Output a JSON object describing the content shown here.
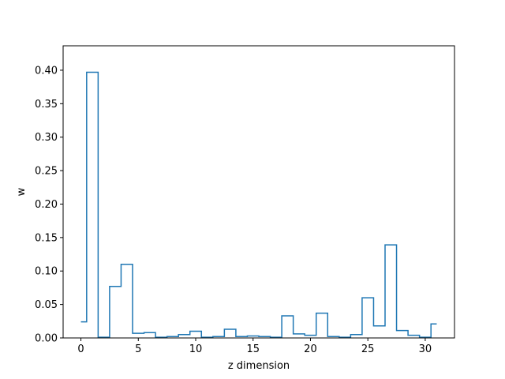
{
  "chart_data": {
    "type": "line",
    "drawstyle": "steps-mid",
    "xlabel": "z dimension",
    "ylabel": "w",
    "xlim": [
      -1.55,
      32.55
    ],
    "ylim": [
      0,
      0.4365
    ],
    "x_ticks": [
      0,
      5,
      10,
      15,
      20,
      25,
      30
    ],
    "y_ticks": [
      0.0,
      0.05,
      0.1,
      0.15,
      0.2,
      0.25,
      0.3,
      0.35,
      0.4
    ],
    "grid": false,
    "line_color": "#1f77b4",
    "series": [
      {
        "x": [
          0,
          1,
          2,
          3,
          4,
          5,
          6,
          7,
          8,
          9,
          10,
          11,
          12,
          13,
          14,
          15,
          16,
          17,
          18,
          19,
          20,
          21,
          22,
          23,
          24,
          25,
          26,
          27,
          28,
          29,
          30,
          31
        ],
        "values": [
          0.024,
          0.397,
          0.001,
          0.077,
          0.11,
          0.007,
          0.008,
          0.001,
          0.002,
          0.005,
          0.01,
          0.001,
          0.002,
          0.013,
          0.002,
          0.003,
          0.002,
          0.001,
          0.033,
          0.006,
          0.004,
          0.037,
          0.002,
          0.001,
          0.005,
          0.06,
          0.018,
          0.139,
          0.011,
          0.004,
          0.001,
          0.021
        ]
      }
    ]
  }
}
